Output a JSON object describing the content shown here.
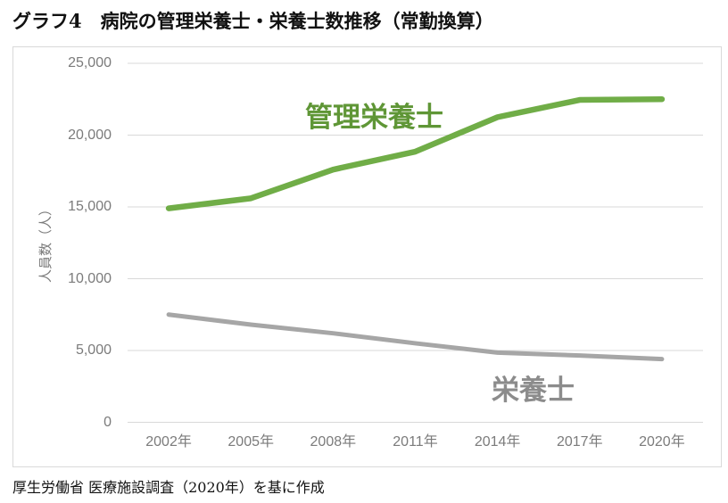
{
  "title": "グラフ4　病院の管理栄養士・栄養士数推移（常勤換算）",
  "source_note": "厚生労働省 医療施設調査（2020年）を基に作成",
  "colors": {
    "gridline": "#d9d9d9",
    "tick_text": "#7b7b7b",
    "green_series": "#70ad47",
    "gray_series": "#a6a6a6"
  },
  "chart_data": {
    "type": "line",
    "title": "グラフ4　病院の管理栄養士・栄養士数推移（常勤換算）",
    "categories": [
      "2002年",
      "2005年",
      "2008年",
      "2011年",
      "2014年",
      "2017年",
      "2020年"
    ],
    "series": [
      {
        "name": "管理栄養士",
        "color": "#70ad47",
        "label_color": "#5f9636",
        "values": [
          14900,
          15600,
          17600,
          18850,
          21250,
          22450,
          22500
        ]
      },
      {
        "name": "栄養士",
        "color": "#a6a6a6",
        "label_color": "#8c8c8c",
        "values": [
          7500,
          6800,
          6200,
          5500,
          4850,
          4650,
          4400
        ]
      }
    ],
    "xlabel": "",
    "ylabel": "人員数（人）",
    "ylim": [
      0,
      25000
    ],
    "ytick_step": 5000,
    "ytick_labels_top_to_bottom": [
      "25,000",
      "20,000",
      "15,000",
      "10,000",
      "5,000",
      "0"
    ],
    "grid": true,
    "legend_position": "inline-labels-on-lines"
  }
}
